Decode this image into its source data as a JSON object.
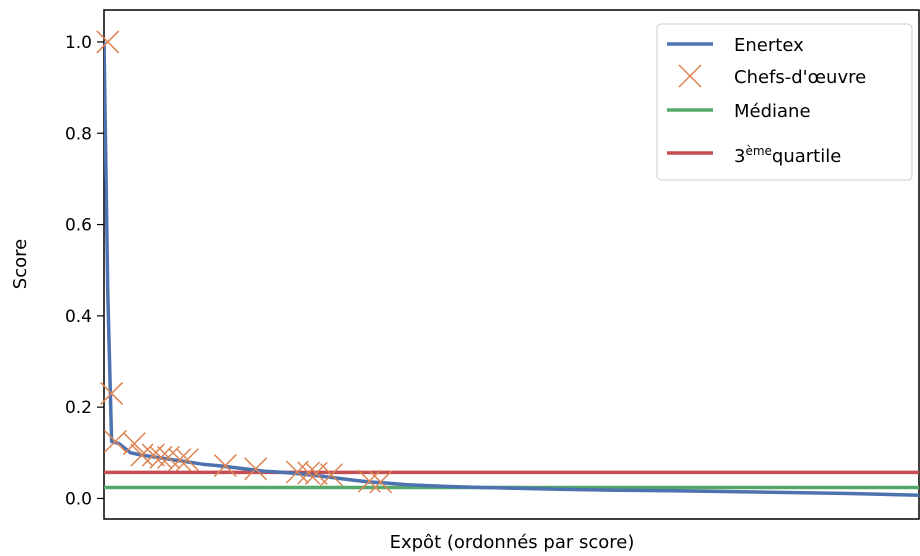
{
  "chart_data": {
    "type": "line",
    "title": "",
    "xlabel": "Expôt (ordonnés par score)",
    "ylabel": "Score",
    "x_ticks_shown": false,
    "ylim": [
      -0.045,
      1.07
    ],
    "yticks": [
      0.0,
      0.2,
      0.4,
      0.6,
      0.8,
      1.0
    ],
    "ytick_labels": [
      "0.0",
      "0.2",
      "0.4",
      "0.6",
      "0.8",
      "1.0"
    ],
    "grid": false,
    "legend_position": "top-right",
    "series": [
      {
        "name": "Enertex",
        "kind": "line",
        "color": "#4c72b0",
        "x": [
          0,
          1,
          2,
          4,
          7,
          10,
          14,
          18,
          22,
          26,
          30,
          34,
          38,
          42,
          46,
          50,
          54,
          58,
          62,
          66,
          70,
          74,
          80,
          86,
          92,
          100,
          110,
          120,
          135,
          150,
          165,
          180,
          195,
          205,
          210,
          215
        ],
        "y": [
          1.0,
          0.45,
          0.125,
          0.12,
          0.1,
          0.095,
          0.09,
          0.085,
          0.08,
          0.075,
          0.072,
          0.068,
          0.064,
          0.06,
          0.058,
          0.055,
          0.052,
          0.048,
          0.044,
          0.04,
          0.036,
          0.034,
          0.03,
          0.028,
          0.026,
          0.024,
          0.022,
          0.02,
          0.018,
          0.017,
          0.015,
          0.013,
          0.011,
          0.009,
          0.008,
          0.007
        ]
      },
      {
        "name": "Chefs-d'œuvre",
        "kind": "marker-x",
        "color": "#dd8452",
        "x": [
          1,
          2,
          3,
          8,
          10,
          13,
          15,
          17,
          20,
          22,
          32,
          40,
          51,
          54,
          56,
          60,
          70,
          73
        ],
        "y": [
          1.0,
          0.23,
          0.125,
          0.12,
          0.095,
          0.095,
          0.09,
          0.09,
          0.085,
          0.085,
          0.072,
          0.065,
          0.058,
          0.056,
          0.055,
          0.052,
          0.038,
          0.036
        ]
      },
      {
        "name": "Médiane",
        "kind": "hline",
        "color": "#55a868",
        "y": 0.024
      },
      {
        "name": "3ème quartile",
        "label_base": "3",
        "label_sup": "ème",
        "label_rest": "quartile",
        "kind": "hline",
        "color": "#c44e52",
        "y": 0.057
      }
    ]
  }
}
